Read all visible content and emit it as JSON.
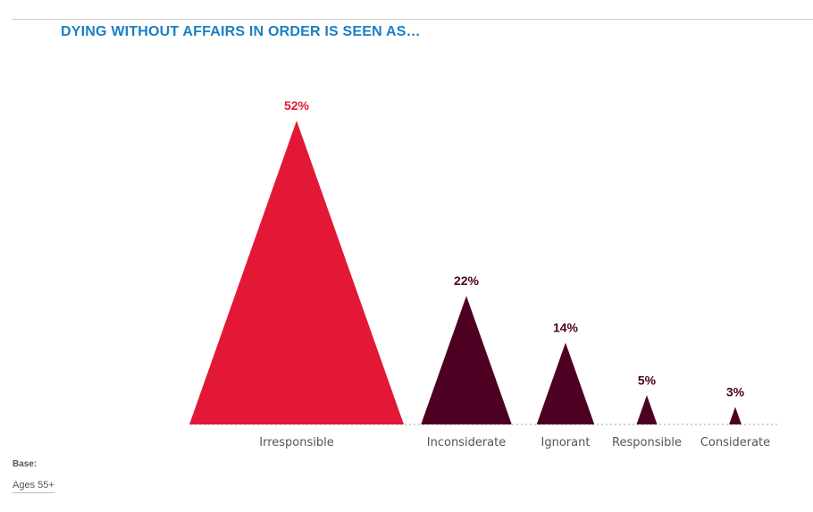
{
  "title": "DYING WITHOUT AFFAIRS IN ORDER IS SEEN AS…",
  "base": {
    "heading": "Base:",
    "value": "Ages 55+"
  },
  "colors": {
    "highlight": "#e31837",
    "default": "#4d0021",
    "title": "#1a7fc4",
    "label": "#555555",
    "baseline": "#b5b5b5"
  },
  "chart_data": {
    "type": "bar",
    "mark_shape": "triangle",
    "title": "DYING WITHOUT AFFAIRS IN ORDER IS SEEN AS…",
    "categories": [
      "Irresponsible",
      "Inconsiderate",
      "Ignorant",
      "Responsible",
      "Considerate"
    ],
    "values": [
      52,
      22,
      14,
      5,
      3
    ],
    "value_labels": [
      "52%",
      "22%",
      "14%",
      "5%",
      "3%"
    ],
    "unit": "%",
    "highlight_index": 0,
    "ylim": [
      0,
      52
    ],
    "grid": false,
    "legend": "none"
  }
}
